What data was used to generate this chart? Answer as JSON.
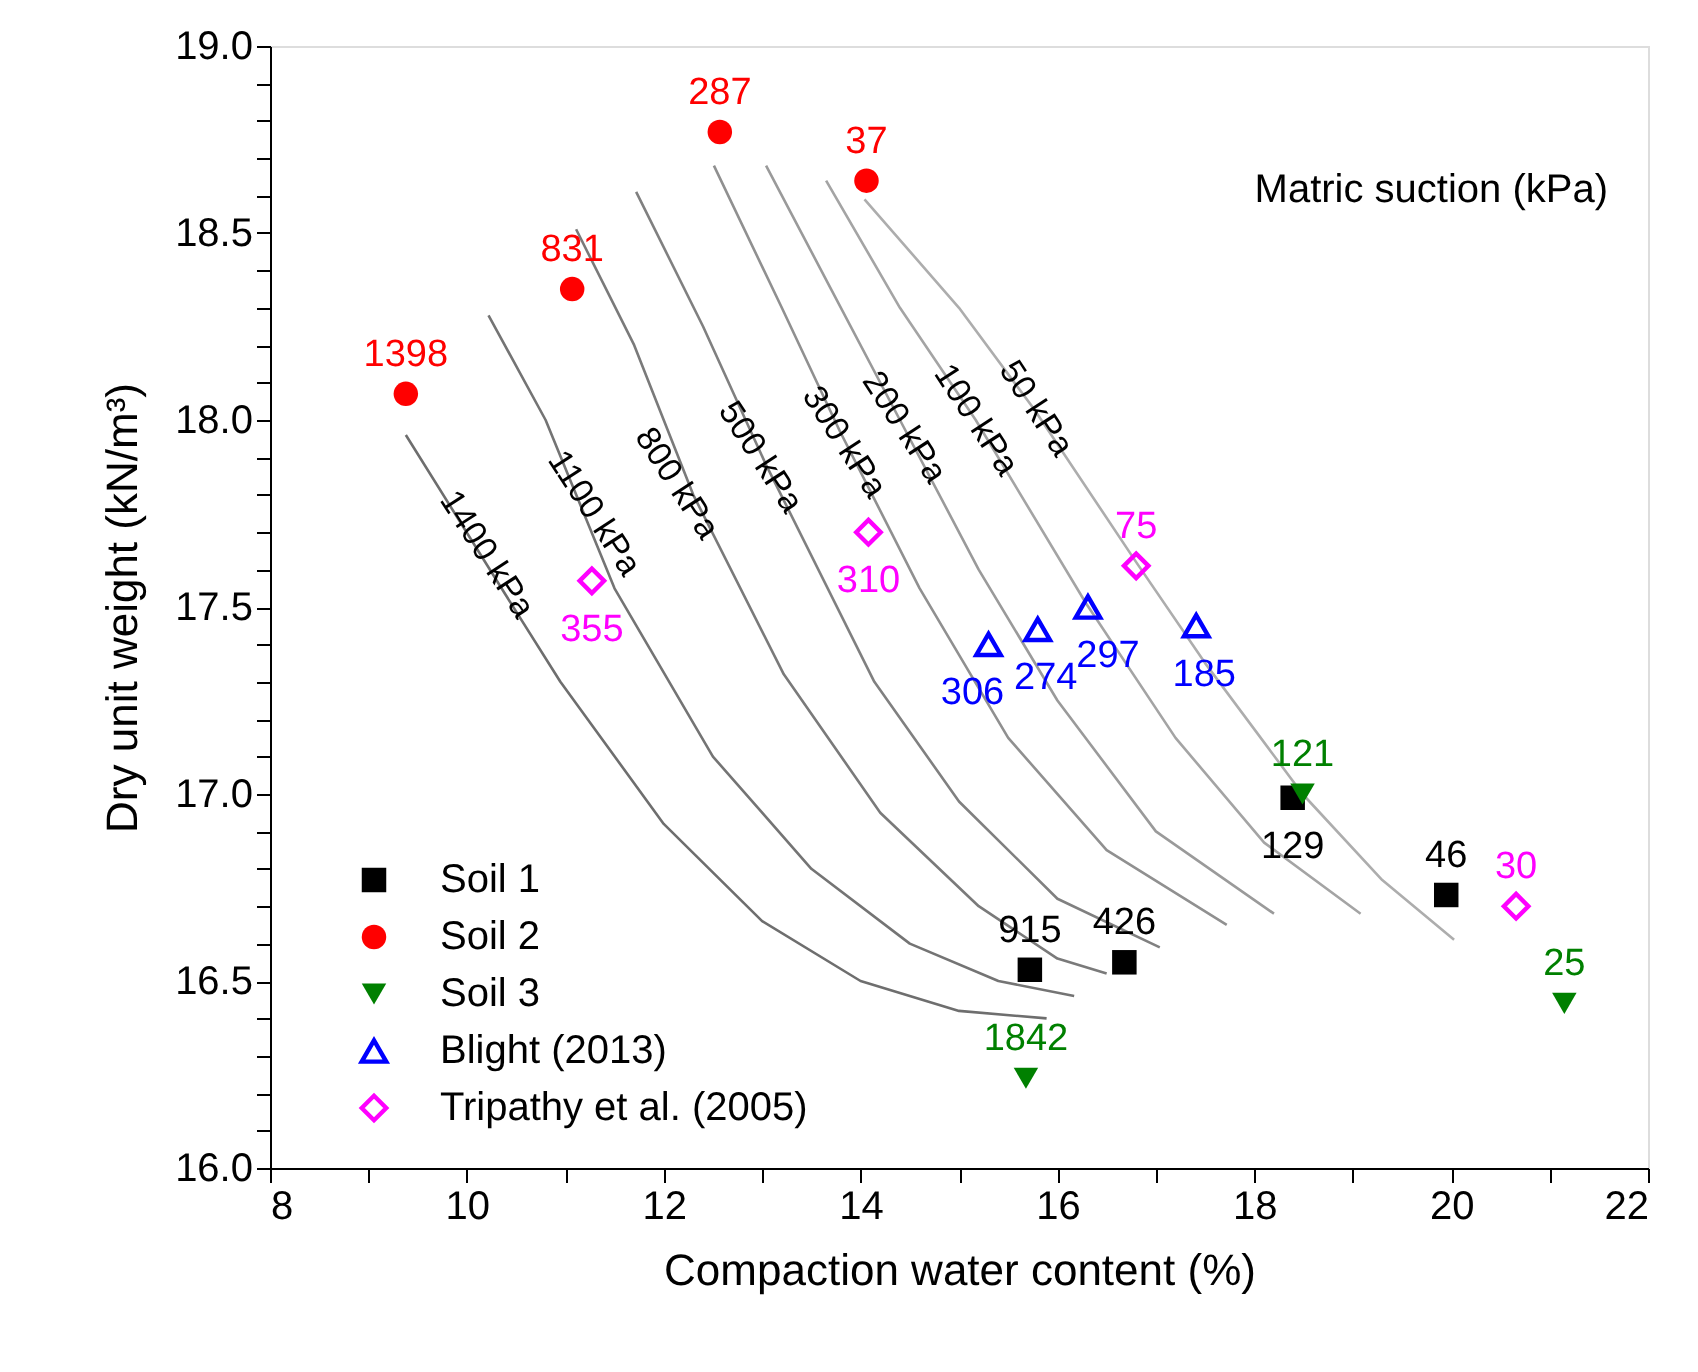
{
  "chart_data": {
    "type": "scatter",
    "xlabel": "Compaction water content (%)",
    "ylabel": "Dry unit weight (kN/m³)",
    "xlim": [
      8,
      22
    ],
    "ylim": [
      16,
      19
    ],
    "xticks": [
      8,
      {
        "value": 9,
        "label": null
      },
      10,
      {
        "value": 11,
        "label": null
      },
      12,
      {
        "value": 13,
        "label": null
      },
      14,
      {
        "value": 15,
        "label": null
      },
      16,
      {
        "value": 17,
        "label": null
      },
      18,
      {
        "value": 19,
        "label": null
      },
      20,
      {
        "value": 21,
        "label": null
      },
      22
    ],
    "yticks": [
      {
        "value": 16,
        "label": "16.0"
      },
      {
        "value": 16.1,
        "label": null
      },
      {
        "value": 16.2,
        "label": null
      },
      {
        "value": 16.3,
        "label": null
      },
      {
        "value": 16.4,
        "label": null
      },
      16.5,
      {
        "value": 16.6,
        "label": null
      },
      {
        "value": 16.7,
        "label": null
      },
      {
        "value": 16.8,
        "label": null
      },
      {
        "value": 16.9,
        "label": null
      },
      {
        "value": 17,
        "label": "17.0"
      },
      {
        "value": 17.1,
        "label": null
      },
      {
        "value": 17.2,
        "label": null
      },
      {
        "value": 17.3,
        "label": null
      },
      {
        "value": 17.4,
        "label": null
      },
      17.5,
      {
        "value": 17.6,
        "label": null
      },
      {
        "value": 17.7,
        "label": null
      },
      {
        "value": 17.8,
        "label": null
      },
      {
        "value": 17.9,
        "label": null
      },
      {
        "value": 18,
        "label": "18.0"
      },
      {
        "value": 18.1,
        "label": null
      },
      {
        "value": 18.2,
        "label": null
      },
      {
        "value": 18.3,
        "label": null
      },
      {
        "value": 18.4,
        "label": null
      },
      18.5,
      {
        "value": 18.6,
        "label": null
      },
      {
        "value": 18.7,
        "label": null
      },
      {
        "value": 18.8,
        "label": null
      },
      {
        "value": 18.9,
        "label": null
      },
      {
        "value": 19,
        "label": "19.0"
      }
    ],
    "grid": false,
    "legend": "bottom left",
    "series": [
      {
        "name": "Soil 1",
        "color": "#000000",
        "marker": "square",
        "x": [
          15.72,
          16.68,
          18.39,
          19.95
        ],
        "values": [
          16.53,
          16.55,
          16.99,
          16.73
        ]
      },
      {
        "name": "Soil 2",
        "color": "#ff0000",
        "marker": "circle",
        "x": [
          9.38,
          11.07,
          12.57,
          14.06
        ],
        "values": [
          18.07,
          18.35,
          18.77,
          18.64
        ]
      },
      {
        "name": "Soil 3",
        "color": "#008000",
        "marker": "triangle-down",
        "x": [
          15.68,
          18.49,
          21.15
        ],
        "values": [
          16.24,
          17.0,
          16.44
        ]
      },
      {
        "name": "Blight (2013)",
        "color": "#0000ff",
        "marker": "triangle",
        "x": [
          15.3,
          15.8,
          16.31,
          17.41
        ],
        "values": [
          17.4,
          17.44,
          17.5,
          17.45
        ]
      },
      {
        "name": "Tripathy et al. (2005)",
        "color": "#ff00ff",
        "marker": "diamond",
        "x": [
          11.27,
          14.08,
          16.8,
          20.66
        ],
        "values": [
          17.57,
          17.7,
          17.61,
          16.7
        ]
      },
      {
        "type": "line",
        "color": "#6e6e6e",
        "line_style": "solid",
        "x": [
          9.38,
          10.4,
          10.95,
          12.0,
          13.0,
          14.0,
          15.0,
          15.89
        ],
        "values": [
          17.96,
          17.53,
          17.3,
          16.92,
          16.66,
          16.5,
          16.42,
          16.4
        ]
      },
      {
        "type": "line",
        "color": "#747474",
        "line_style": "solid",
        "x": [
          10.22,
          10.8,
          11.5,
          12.5,
          13.5,
          14.5,
          15.4,
          16.17
        ],
        "values": [
          18.28,
          18.0,
          17.55,
          17.1,
          16.8,
          16.6,
          16.5,
          16.46
        ]
      },
      {
        "type": "line",
        "color": "#7a7a7a",
        "line_style": "solid",
        "x": [
          11.11,
          11.7,
          12.3,
          13.22,
          14.2,
          15.2,
          16.0,
          16.5
        ],
        "values": [
          18.51,
          18.2,
          17.8,
          17.32,
          16.95,
          16.7,
          16.56,
          16.52
        ]
      },
      {
        "type": "line",
        "color": "#808080",
        "line_style": "solid",
        "x": [
          11.72,
          12.4,
          13.04,
          14.14,
          15.0,
          16.0,
          17.04
        ],
        "values": [
          18.61,
          18.25,
          17.88,
          17.3,
          16.98,
          16.72,
          16.59
        ]
      },
      {
        "type": "line",
        "color": "#909090",
        "line_style": "solid",
        "x": [
          12.51,
          13.2,
          13.79,
          14.6,
          15.5,
          16.5,
          17.72
        ],
        "values": [
          18.68,
          18.3,
          17.97,
          17.55,
          17.15,
          16.85,
          16.65
        ]
      },
      {
        "type": "line",
        "color": "#9a9a9a",
        "line_style": "solid",
        "x": [
          13.04,
          13.7,
          14.4,
          15.2,
          16.0,
          17.0,
          18.2
        ],
        "values": [
          18.68,
          18.35,
          18.0,
          17.6,
          17.25,
          16.9,
          16.68
        ]
      },
      {
        "type": "line",
        "color": "#a4a4a4",
        "line_style": "solid",
        "x": [
          13.65,
          14.4,
          15.17,
          16.29,
          17.2,
          18.1,
          19.08
        ],
        "values": [
          18.64,
          18.3,
          18.0,
          17.51,
          17.15,
          16.87,
          16.68
        ]
      },
      {
        "type": "line",
        "color": "#adadad",
        "line_style": "solid",
        "x": [
          14.04,
          15.0,
          15.76,
          16.8,
          17.5,
          18.49,
          19.3,
          20.03
        ],
        "values": [
          18.59,
          18.3,
          18.03,
          17.62,
          17.35,
          17.0,
          16.77,
          16.61
        ]
      }
    ],
    "annotations": [
      "Matric suction (kPa)",
      {
        "text": "1400 kPa",
        "x": 10.2,
        "y": 17.64
      },
      {
        "text": "1100 kPa",
        "x": 11.29,
        "y": 17.75
      },
      {
        "text": "800 kPa",
        "x": 12.13,
        "y": 17.83
      },
      {
        "text": "500 kPa",
        "x": 12.98,
        "y": 17.9
      },
      {
        "text": "300 kPa",
        "x": 13.83,
        "y": 17.94
      },
      {
        "text": "200 kPa",
        "x": 14.44,
        "y": 17.98
      },
      {
        "text": "100 kPa",
        "x": 15.17,
        "y": 18.0
      },
      {
        "text": "50 kPa",
        "x": 15.78,
        "y": 18.03
      },
      {
        "text": "915",
        "x": 15.72,
        "y": 16.53
      },
      {
        "text": "426",
        "x": 16.68,
        "y": 16.55
      },
      {
        "text": "129",
        "x": 18.39,
        "y": 16.99
      },
      {
        "text": "46",
        "x": 19.95,
        "y": 16.73
      },
      {
        "text": "1398",
        "x": 9.38,
        "y": 18.07
      },
      {
        "text": "831",
        "x": 11.07,
        "y": 18.35
      },
      {
        "text": "287",
        "x": 12.57,
        "y": 18.77
      },
      {
        "text": "37",
        "x": 14.06,
        "y": 18.64
      },
      {
        "text": "1842",
        "x": 15.68,
        "y": 16.24
      },
      {
        "text": "121",
        "x": 18.49,
        "y": 17.0
      },
      {
        "text": "25",
        "x": 21.15,
        "y": 16.44
      },
      {
        "text": "306",
        "x": 15.3,
        "y": 17.4
      },
      {
        "text": "274",
        "x": 15.8,
        "y": 17.44
      },
      {
        "text": "297",
        "x": 16.31,
        "y": 17.5
      },
      {
        "text": "185",
        "x": 17.41,
        "y": 17.45
      },
      {
        "text": "355",
        "x": 11.27,
        "y": 17.57
      },
      {
        "text": "310",
        "x": 14.08,
        "y": 17.7
      },
      {
        "text": "75",
        "x": 16.8,
        "y": 17.61
      },
      {
        "text": "30",
        "x": 20.66,
        "y": 16.7
      }
    ]
  }
}
